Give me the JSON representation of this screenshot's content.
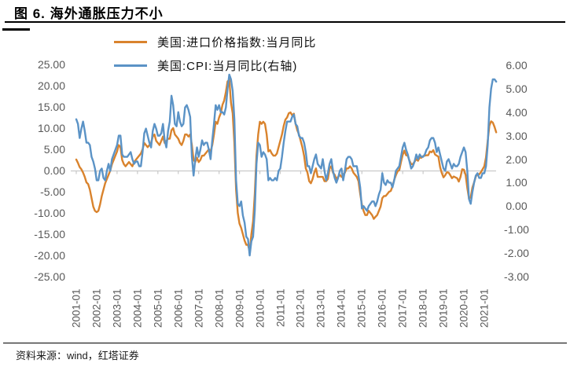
{
  "title": "图 6. 海外通胀压力不小",
  "source": "资料来源：wind，红塔证券",
  "legend": [
    {
      "label": "美国:进口价格指数:当月同比",
      "color": "#D9832D"
    },
    {
      "label": "美国:CPI:当月同比(右轴)",
      "color": "#5B93C6"
    }
  ],
  "chart_data": {
    "type": "line",
    "frequency": "monthly",
    "x_start": "2001-01",
    "x_end": "2021-08",
    "grid": "horizontal-zero-line-only",
    "legend_position": "top-center",
    "x_tick_labels": [
      "2001-01",
      "2002-01",
      "2003-01",
      "2004-01",
      "2005-01",
      "2006-01",
      "2007-01",
      "2008-01",
      "2009-01",
      "2010-01",
      "2011-01",
      "2012-01",
      "2013-01",
      "2014-01",
      "2015-01",
      "2016-01",
      "2017-01",
      "2018-01",
      "2019-01",
      "2020-01",
      "2021-01"
    ],
    "left_axis": {
      "min": -25,
      "max": 25,
      "ticks": [
        "25.00",
        "20.00",
        "15.00",
        "10.00",
        "5.00",
        "0.00",
        "-5.00",
        "-10.00",
        "-15.00",
        "-20.00",
        "-25.00"
      ]
    },
    "right_axis": {
      "min": -3,
      "max": 6,
      "ticks": [
        "6.00",
        "5.00",
        "4.00",
        "3.00",
        "2.00",
        "1.00",
        "0.00",
        "-1.00",
        "-2.00",
        "-3.00"
      ]
    },
    "series": [
      {
        "name": "美国:进口价格指数:当月同比",
        "axis": "left",
        "color": "#D9832D",
        "values": [
          2.6,
          1.8,
          0.8,
          0.3,
          -0.5,
          -1.5,
          -2.8,
          -3.2,
          -4.5,
          -6.5,
          -8.5,
          -9.5,
          -9.8,
          -9.5,
          -8.0,
          -6.0,
          -4.5,
          -3.0,
          -2.0,
          -1.0,
          0.0,
          1.5,
          2.5,
          3.5,
          4.5,
          6.0,
          5.5,
          2.5,
          1.5,
          1.0,
          1.5,
          2.0,
          1.5,
          1.0,
          2.0,
          2.5,
          3.0,
          3.5,
          4.0,
          5.0,
          6.5,
          6.0,
          5.5,
          6.0,
          6.5,
          8.0,
          8.5,
          7.0,
          6.5,
          6.0,
          7.0,
          8.0,
          6.5,
          7.0,
          7.5,
          7.5,
          9.5,
          10.0,
          8.5,
          8.0,
          7.5,
          6.5,
          6.0,
          7.0,
          8.5,
          8.5,
          8.0,
          8.5,
          6.0,
          2.5,
          2.0,
          3.0,
          2.0,
          2.5,
          3.5,
          3.5,
          4.0,
          4.5,
          5.0,
          4.5,
          6.0,
          8.5,
          11.5,
          11.0,
          12.5,
          13.5,
          15.5,
          16.5,
          18.5,
          21.0,
          21.4,
          16.0,
          13.5,
          6.5,
          -4.5,
          -10.0,
          -12.5,
          -13.5,
          -15.0,
          -16.5,
          -17.5,
          -17.5,
          -19.1,
          -15.0,
          -12.0,
          -5.5,
          3.5,
          8.5,
          11.5,
          11.0,
          11.5,
          11.0,
          8.5,
          4.5,
          4.8,
          4.0,
          3.5,
          3.5,
          4.0,
          5.5,
          7.0,
          8.5,
          10.5,
          12.0,
          12.5,
          13.5,
          13.7,
          13.0,
          13.4,
          11.0,
          9.5,
          8.5,
          7.0,
          5.5,
          3.5,
          0.5,
          -0.5,
          -2.5,
          -3.0,
          -2.0,
          -0.5,
          0.5,
          -1.5,
          -1.5,
          -1.5,
          -1.5,
          -2.5,
          -2.5,
          -2.0,
          0.5,
          1.0,
          -0.5,
          -1.0,
          -2.0,
          -1.5,
          -1.0,
          -1.5,
          -1.0,
          -0.5,
          0.5,
          0.5,
          1.0,
          0.5,
          -0.5,
          -1.0,
          -1.5,
          -2.5,
          -5.5,
          -8.0,
          -9.5,
          -10.5,
          -10.5,
          -9.5,
          -10.0,
          -10.5,
          -11.4,
          -10.9,
          -10.5,
          -9.5,
          -8.5,
          -6.5,
          -6.0,
          -6.0,
          -5.5,
          -5.0,
          -4.8,
          -3.7,
          -2.2,
          -1.1,
          -0.2,
          0.1,
          2.0,
          3.7,
          4.7,
          3.6,
          3.5,
          2.3,
          1.5,
          1.5,
          2.1,
          2.7,
          2.3,
          3.1,
          3.0,
          3.4,
          3.5,
          3.6,
          3.6,
          4.5,
          4.3,
          4.8,
          3.8,
          3.5,
          3.3,
          0.8,
          -0.6,
          -1.6,
          -1.1,
          -0.4,
          -0.5,
          -1.1,
          -1.8,
          -1.4,
          -1.6,
          -1.8,
          -2.6,
          -1.5,
          0.3,
          0.2,
          -1.0,
          -4.1,
          -6.6,
          -6.3,
          -4.0,
          -2.8,
          -1.4,
          -0.8,
          -0.9,
          -0.4,
          0.3,
          1.0,
          3.1,
          7.0,
          10.6,
          11.6,
          11.3,
          10.3,
          9.0
        ]
      },
      {
        "name": "美国:CPI:当月同比(右轴)",
        "axis": "right",
        "color": "#5B93C6",
        "values": [
          3.7,
          3.5,
          2.9,
          3.3,
          3.6,
          3.2,
          2.7,
          2.7,
          2.6,
          2.1,
          1.9,
          1.6,
          1.1,
          1.1,
          1.5,
          1.6,
          1.2,
          1.1,
          1.5,
          1.8,
          1.5,
          2.0,
          2.2,
          2.4,
          2.6,
          3.0,
          3.0,
          2.2,
          2.1,
          2.1,
          2.1,
          2.2,
          2.3,
          2.0,
          1.8,
          1.9,
          1.9,
          1.7,
          1.7,
          2.3,
          3.1,
          3.3,
          3.0,
          2.7,
          2.5,
          3.2,
          3.5,
          3.3,
          3.0,
          3.0,
          3.1,
          3.5,
          2.8,
          2.5,
          3.2,
          3.6,
          4.7,
          4.3,
          3.5,
          3.4,
          4.0,
          3.6,
          3.4,
          3.5,
          4.2,
          4.3,
          4.1,
          3.8,
          2.1,
          1.3,
          2.0,
          2.5,
          2.1,
          2.4,
          2.8,
          2.6,
          2.7,
          2.7,
          2.4,
          2.0,
          2.8,
          3.5,
          4.3,
          4.1,
          4.3,
          4.0,
          4.0,
          3.9,
          4.2,
          5.0,
          5.6,
          5.4,
          4.9,
          3.7,
          1.1,
          0.1,
          0.0,
          0.2,
          -0.4,
          -0.7,
          -1.3,
          -1.4,
          -2.1,
          -1.5,
          -1.3,
          -0.2,
          1.8,
          2.7,
          2.6,
          2.1,
          2.3,
          2.2,
          2.0,
          1.1,
          1.2,
          1.1,
          1.1,
          1.2,
          1.1,
          1.5,
          1.6,
          2.1,
          2.7,
          3.2,
          3.6,
          3.6,
          3.6,
          3.8,
          3.9,
          3.5,
          3.4,
          3.0,
          2.9,
          2.9,
          2.7,
          2.3,
          1.7,
          1.7,
          1.4,
          1.7,
          2.0,
          2.2,
          1.8,
          1.7,
          1.6,
          2.0,
          1.5,
          1.1,
          1.4,
          1.8,
          2.0,
          1.5,
          1.2,
          1.0,
          1.2,
          1.5,
          1.6,
          1.1,
          1.5,
          2.0,
          2.1,
          2.1,
          2.0,
          1.7,
          1.7,
          1.7,
          1.3,
          0.8,
          -0.1,
          0.0,
          -0.1,
          -0.2,
          0.0,
          0.1,
          0.2,
          0.2,
          0.0,
          0.2,
          0.5,
          0.7,
          1.4,
          1.0,
          0.9,
          1.1,
          1.0,
          1.0,
          0.8,
          1.1,
          1.5,
          1.6,
          1.7,
          2.1,
          2.5,
          2.7,
          2.4,
          2.2,
          1.9,
          1.6,
          1.7,
          1.9,
          2.2,
          2.0,
          2.2,
          2.1,
          2.1,
          2.2,
          2.4,
          2.5,
          2.8,
          2.9,
          2.9,
          2.7,
          2.3,
          2.5,
          2.2,
          1.9,
          1.6,
          1.5,
          1.9,
          2.0,
          1.8,
          1.6,
          1.8,
          1.7,
          1.7,
          1.8,
          2.1,
          2.3,
          2.5,
          2.3,
          1.5,
          0.3,
          0.1,
          0.6,
          1.0,
          1.3,
          1.4,
          1.2,
          1.2,
          1.4,
          1.4,
          1.7,
          2.6,
          4.2,
          5.0,
          5.4,
          5.4,
          5.3
        ]
      }
    ]
  }
}
